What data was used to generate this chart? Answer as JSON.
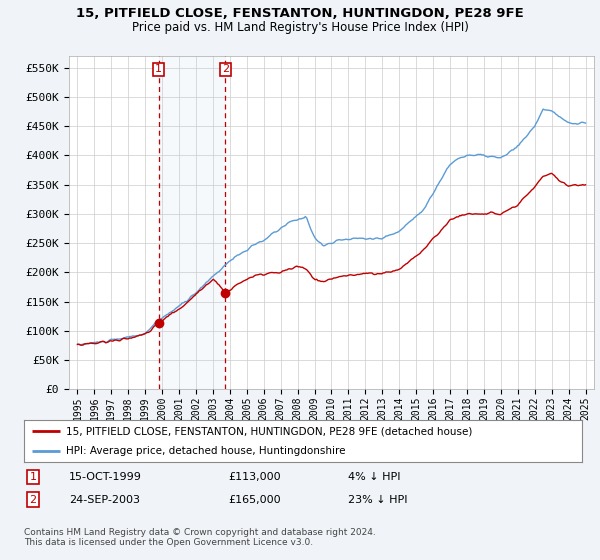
{
  "title": "15, PITFIELD CLOSE, FENSTANTON, HUNTINGDON, PE28 9FE",
  "subtitle": "Price paid vs. HM Land Registry's House Price Index (HPI)",
  "legend_line1": "15, PITFIELD CLOSE, FENSTANTON, HUNTINGDON, PE28 9FE (detached house)",
  "legend_line2": "HPI: Average price, detached house, Huntingdonshire",
  "footnote": "Contains HM Land Registry data © Crown copyright and database right 2024.\nThis data is licensed under the Open Government Licence v3.0.",
  "annotation1": {
    "label": "1",
    "date": "15-OCT-1999",
    "price": "£113,000",
    "pct": "4% ↓ HPI"
  },
  "annotation2": {
    "label": "2",
    "date": "24-SEP-2003",
    "price": "£165,000",
    "pct": "23% ↓ HPI"
  },
  "sale1_x": 1999.79,
  "sale1_y": 113000,
  "sale2_x": 2003.73,
  "sale2_y": 165000,
  "hpi_color": "#5b9bd5",
  "price_color": "#c00000",
  "annotation_color": "#c00000",
  "bg_color": "#f0f4f8",
  "plot_bg": "#ffffff",
  "ylim_min": 0,
  "ylim_max": 570000,
  "xlim_min": 1994.5,
  "xlim_max": 2025.5,
  "yticks": [
    0,
    50000,
    100000,
    150000,
    200000,
    250000,
    300000,
    350000,
    400000,
    450000,
    500000,
    550000
  ],
  "xtick_years": [
    1995,
    1996,
    1997,
    1998,
    1999,
    2000,
    2001,
    2002,
    2003,
    2004,
    2005,
    2006,
    2007,
    2008,
    2009,
    2010,
    2011,
    2012,
    2013,
    2014,
    2015,
    2016,
    2017,
    2018,
    2019,
    2020,
    2021,
    2022,
    2023,
    2024,
    2025
  ]
}
